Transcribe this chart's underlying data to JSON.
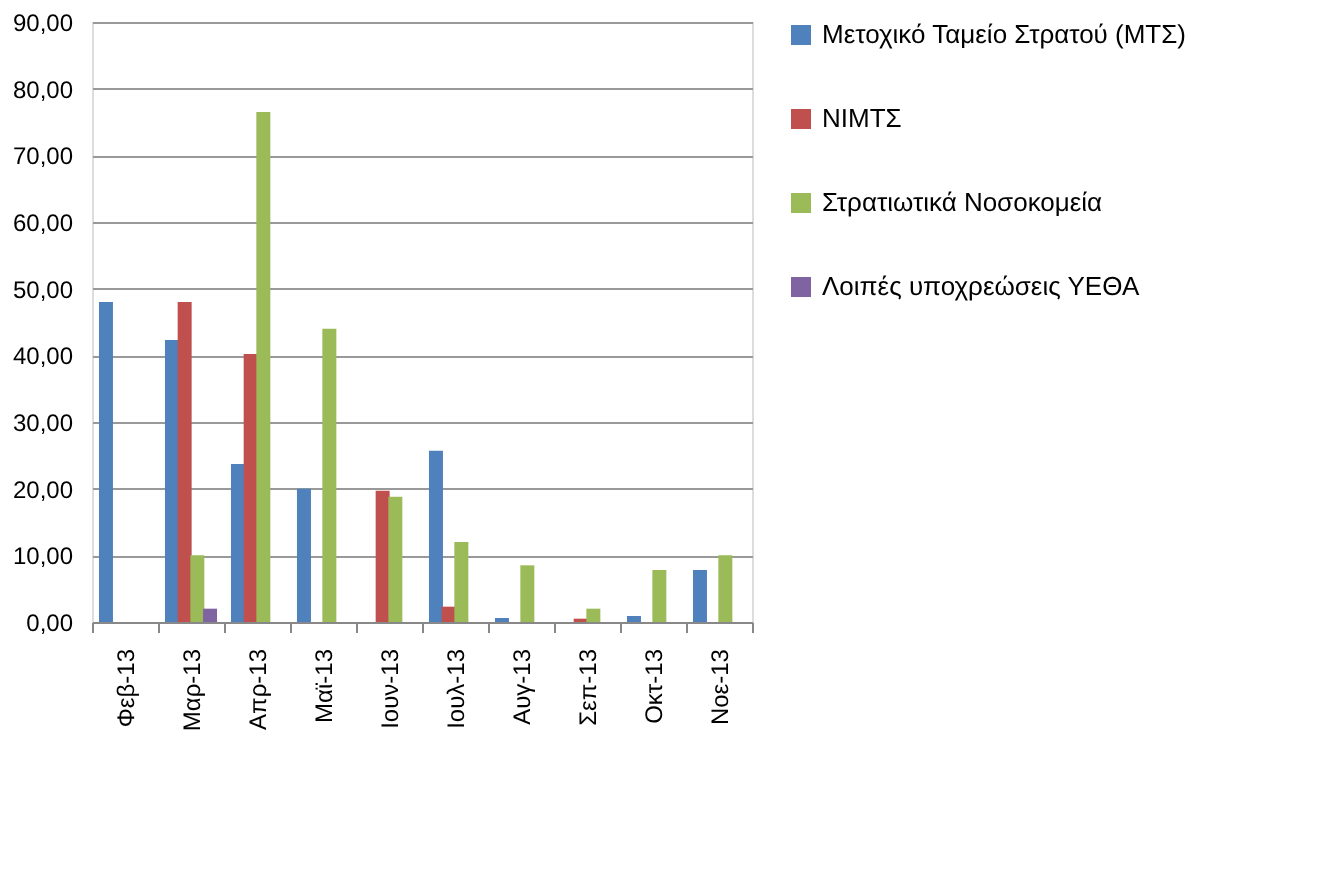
{
  "chart_data": {
    "type": "bar",
    "categories": [
      "Φεβ-13",
      "Μαρ-13",
      "Απρ-13",
      "Μαϊ-13",
      "Ιουν-13",
      "Ιουλ-13",
      "Αυγ-13",
      "Σεπ-13",
      "Οκτ-13",
      "Νοε-13"
    ],
    "series": [
      {
        "name": "Μετοχικό Ταμείο Στρατού (ΜΤΣ)",
        "color": "#4f81bd",
        "values": [
          48,
          42.3,
          23.7,
          20,
          null,
          25.7,
          0.6,
          null,
          0.9,
          7.8
        ]
      },
      {
        "name": "ΝΙΜΤΣ",
        "color": "#c0504d",
        "values": [
          null,
          48,
          40.2,
          null,
          19.7,
          2.3,
          null,
          0.5,
          null,
          null
        ]
      },
      {
        "name": "Στρατιωτικά Νοσοκομεία",
        "color": "#9bbb59",
        "values": [
          null,
          10,
          76.5,
          44,
          18.8,
          12,
          8.5,
          2,
          7.8,
          10
        ]
      },
      {
        "name": "Λοιπές υποχρεώσεις ΥΕΘΑ",
        "color": "#8064a2",
        "values": [
          null,
          2,
          null,
          null,
          null,
          null,
          null,
          null,
          null,
          null
        ]
      }
    ],
    "ylim": [
      0,
      90
    ],
    "yticks": [
      {
        "value": 0,
        "label": "0,00"
      },
      {
        "value": 10,
        "label": "10,00"
      },
      {
        "value": 20,
        "label": "20,00"
      },
      {
        "value": 30,
        "label": "30,00"
      },
      {
        "value": 40,
        "label": "40,00"
      },
      {
        "value": 50,
        "label": "50,00"
      },
      {
        "value": 60,
        "label": "60,00"
      },
      {
        "value": 70,
        "label": "70,00"
      },
      {
        "value": 80,
        "label": "80,00"
      },
      {
        "value": 90,
        "label": "90,00"
      }
    ],
    "grid": "y",
    "legend": "right"
  }
}
